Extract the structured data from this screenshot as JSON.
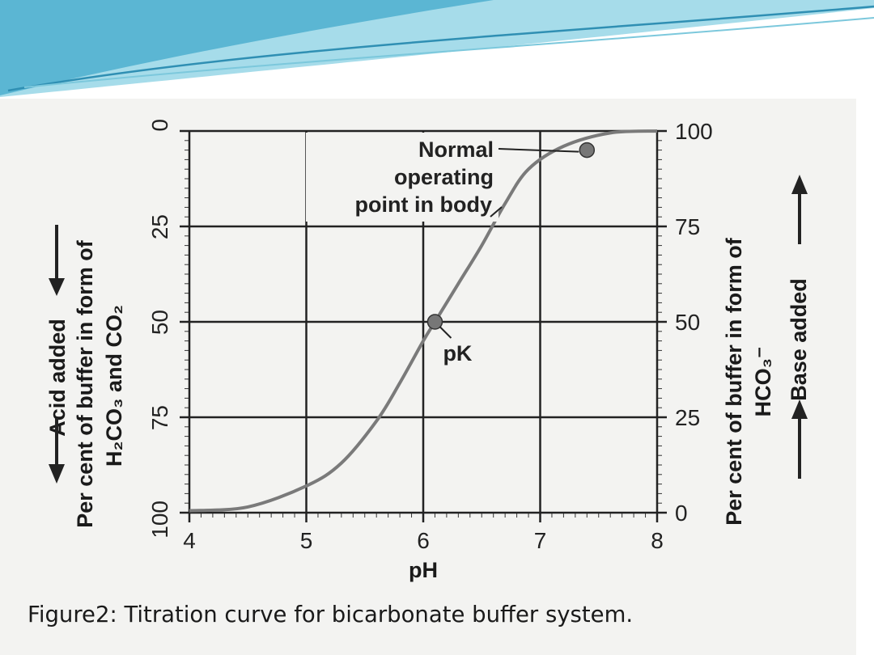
{
  "caption": "Figure2: Titration curve for bicarbonate buffer system.",
  "theme": {
    "swoosh_dark": "#3aa7c8",
    "swoosh_light": "#9fdbe9",
    "curve": "#777777",
    "grid": "#222222"
  },
  "chart_data": {
    "type": "line",
    "title": "",
    "xlabel": "pH",
    "xlim": [
      4,
      8
    ],
    "x_ticks": [
      "4",
      "5",
      "6",
      "7",
      "8"
    ],
    "left_axis": {
      "label_line1": "Acid added",
      "label_line2": "Per cent of buffer in form of",
      "label_line3": "H₂CO₃ and CO₂",
      "ticks": [
        "0",
        "25",
        "50",
        "75",
        "100"
      ],
      "inverted": true
    },
    "right_axis": {
      "label_line1": "Per cent of buffer in form of",
      "label_line2": "HCO₃⁻",
      "label_line3": "Base added",
      "ticks": [
        "100",
        "75",
        "50",
        "25",
        "0"
      ]
    },
    "ylim": [
      0,
      100
    ],
    "series": [
      {
        "x": [
          4.0,
          4.5,
          5.0,
          5.3,
          5.6,
          5.8,
          6.0,
          6.1,
          6.3,
          6.5,
          6.7,
          6.9,
          7.2,
          7.6,
          8.0
        ],
        "y": [
          0.5,
          1.5,
          7.0,
          13.0,
          24.0,
          34.0,
          45.0,
          50.0,
          60.0,
          70.0,
          81.0,
          90.0,
          96.0,
          99.5,
          100.0
        ]
      }
    ],
    "points": [
      {
        "label": "pK",
        "x": 6.1,
        "y": 50
      },
      {
        "label": "Normal operating point in body",
        "x": 7.4,
        "y": 95
      }
    ],
    "annotations": {
      "pk": "pK",
      "normal_line1": "Normal",
      "normal_line2": "operating",
      "normal_line3": "point in body"
    }
  }
}
